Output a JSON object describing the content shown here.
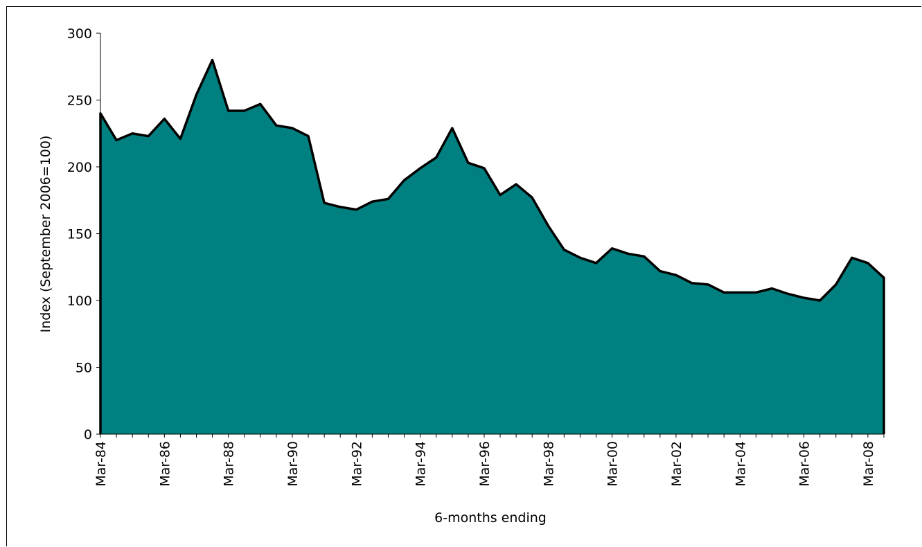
{
  "chart_data": {
    "type": "area",
    "ylabel": "Index (September 2006=100)",
    "xlabel": "6-months ending",
    "ylim": [
      0,
      300
    ],
    "yticks": [
      0,
      50,
      100,
      150,
      200,
      250,
      300
    ],
    "x_tick_labels": [
      "Mar-84",
      "Mar-86",
      "Mar-88",
      "Mar-90",
      "Mar-92",
      "Mar-94",
      "Mar-96",
      "Mar-98",
      "Mar-00",
      "Mar-02",
      "Mar-04",
      "Mar-06",
      "Mar-08"
    ],
    "x_tick_every": 4,
    "grid": false,
    "legend": "none",
    "fill_color": "#008080",
    "line_color": "#000000",
    "series": [
      {
        "values": [
          240,
          220,
          225,
          223,
          236,
          221,
          254,
          280,
          242,
          242,
          247,
          231,
          229,
          223,
          173,
          170,
          168,
          174,
          176,
          190,
          199,
          207,
          229,
          203,
          199,
          179,
          187,
          177,
          156,
          138,
          132,
          128,
          139,
          135,
          133,
          122,
          119,
          113,
          112,
          106,
          106,
          106,
          109,
          105,
          102,
          100,
          112,
          132,
          128,
          117
        ]
      }
    ]
  }
}
